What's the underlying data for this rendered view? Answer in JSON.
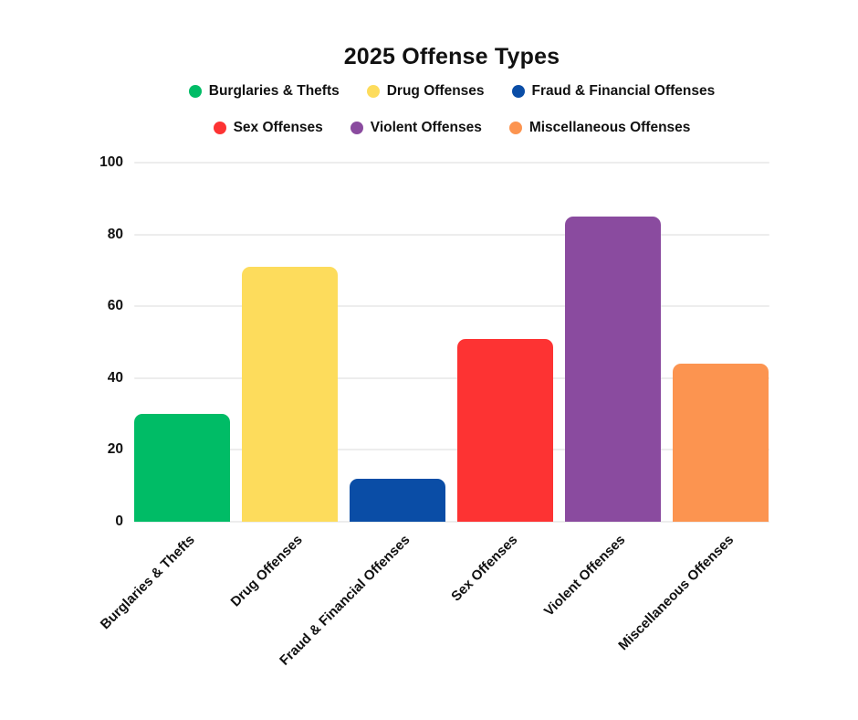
{
  "chart": {
    "title": "2025 Offense Types"
  },
  "chart_data": {
    "type": "bar",
    "title": "2025 Offense Types",
    "categories": [
      "Burglaries & Thefts",
      "Drug Offenses",
      "Fraud & Financial Offenses",
      "Sex Offenses",
      "Violent Offenses",
      "Miscellaneous Offenses"
    ],
    "values": [
      30,
      71,
      12,
      51,
      85,
      44
    ],
    "colors": [
      "#00bc66",
      "#fddc5c",
      "#0a4da6",
      "#fd3333",
      "#8a4b9f",
      "#fc9450"
    ],
    "legend": {
      "position": "top",
      "rows": [
        [
          "Burglaries & Thefts",
          "Drug Offenses",
          "Fraud & Financial Offenses"
        ],
        [
          "Sex Offenses",
          "Violent Offenses",
          "Miscellaneous Offenses"
        ]
      ]
    },
    "xlabel": "",
    "ylabel": "",
    "ylim": [
      0,
      100
    ],
    "yticks": [
      0,
      20,
      40,
      60,
      80,
      100
    ],
    "grid": true
  },
  "style_colors": {
    "grid": "#ededed",
    "text": "#111111",
    "background": "#ffffff"
  }
}
